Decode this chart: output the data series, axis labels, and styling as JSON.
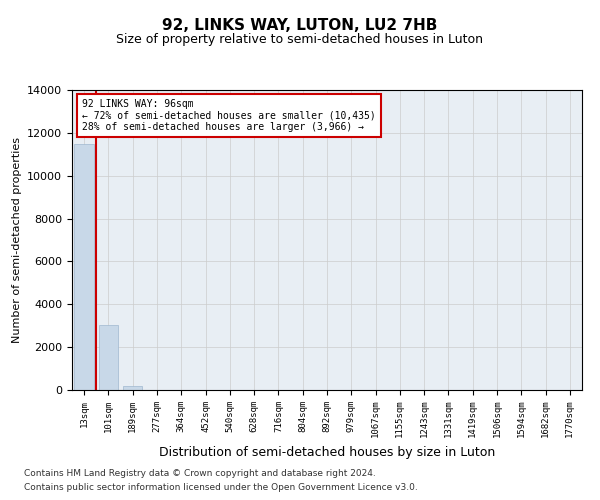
{
  "title": "92, LINKS WAY, LUTON, LU2 7HB",
  "subtitle": "Size of property relative to semi-detached houses in Luton",
  "xlabel": "Distribution of semi-detached houses by size in Luton",
  "ylabel": "Number of semi-detached properties",
  "categories": [
    "13sqm",
    "101sqm",
    "189sqm",
    "277sqm",
    "364sqm",
    "452sqm",
    "540sqm",
    "628sqm",
    "716sqm",
    "804sqm",
    "892sqm",
    "979sqm",
    "1067sqm",
    "1155sqm",
    "1243sqm",
    "1331sqm",
    "1419sqm",
    "1506sqm",
    "1594sqm",
    "1682sqm",
    "1770sqm"
  ],
  "values": [
    11500,
    3050,
    175,
    0,
    0,
    0,
    0,
    0,
    0,
    0,
    0,
    0,
    0,
    0,
    0,
    0,
    0,
    0,
    0,
    0,
    0
  ],
  "bar_color": "#c8d8e8",
  "bar_edge_color": "#a0b8d0",
  "highlight_color": "#cc0000",
  "annotation_title": "92 LINKS WAY: 96sqm",
  "annotation_line1": "← 72% of semi-detached houses are smaller (10,435)",
  "annotation_line2": "28% of semi-detached houses are larger (3,966) →",
  "annotation_box_color": "#ffffff",
  "annotation_box_edge": "#cc0000",
  "ylim": [
    0,
    14000
  ],
  "yticks": [
    0,
    2000,
    4000,
    6000,
    8000,
    10000,
    12000,
    14000
  ],
  "grid_color": "#cccccc",
  "bg_color": "#e8eef4",
  "fig_bg_color": "#ffffff",
  "footer_line1": "Contains HM Land Registry data © Crown copyright and database right 2024.",
  "footer_line2": "Contains public sector information licensed under the Open Government Licence v3.0."
}
